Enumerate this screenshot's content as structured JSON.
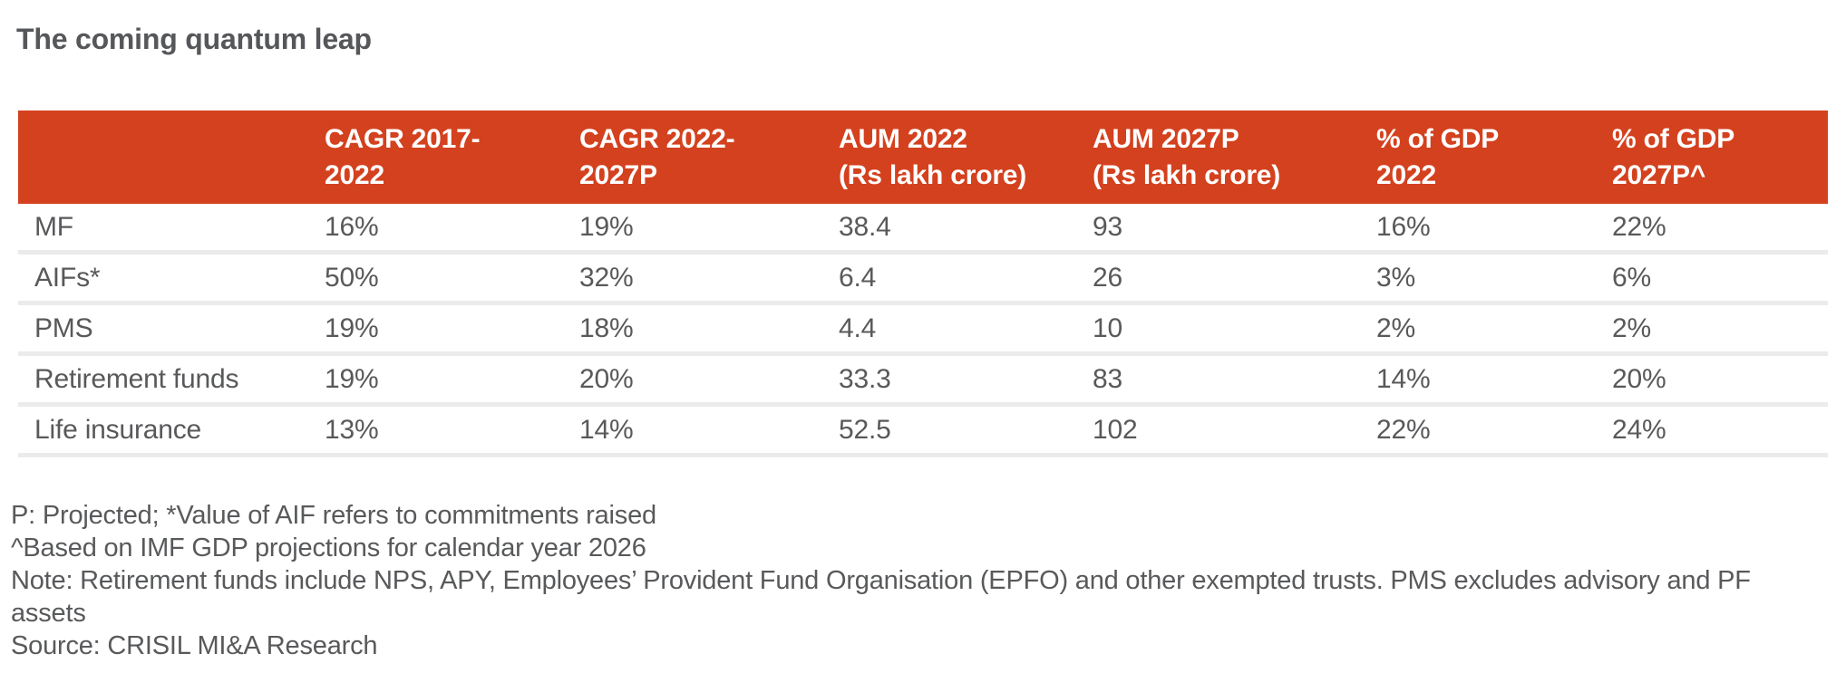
{
  "title": "The coming quantum leap",
  "colors": {
    "header_bg": "#d4411e",
    "header_text": "#ffffff",
    "body_text": "#58595b",
    "title_text": "#56575a",
    "row_divider": "#ebebeb",
    "background": "#ffffff"
  },
  "header": {
    "columns": [
      {
        "line1": "",
        "line2": ""
      },
      {
        "line1": "CAGR 2017-",
        "line2": "2022"
      },
      {
        "line1": "CAGR 2022-",
        "line2": "2027P"
      },
      {
        "line1": "AUM 2022",
        "line2": "(Rs lakh crore)"
      },
      {
        "line1": "AUM 2027P",
        "line2": "(Rs lakh crore)"
      },
      {
        "line1": "% of GDP",
        "line2": "2022"
      },
      {
        "line1": "% of GDP",
        "line2": "2027P^"
      }
    ]
  },
  "chart_data": {
    "type": "table",
    "title": "The coming quantum leap",
    "columns": [
      "",
      "CAGR 2017-2022",
      "CAGR 2022-2027P",
      "AUM 2022 (Rs lakh crore)",
      "AUM 2027P (Rs lakh crore)",
      "% of GDP 2022",
      "% of GDP 2027P^"
    ],
    "rows": [
      [
        "MF",
        "16%",
        "19%",
        "38.4",
        "93",
        "16%",
        "22%"
      ],
      [
        "AIFs*",
        "50%",
        "32%",
        "6.4",
        "26",
        "3%",
        "6%"
      ],
      [
        "PMS",
        "19%",
        "18%",
        "4.4",
        "10",
        "2%",
        "2%"
      ],
      [
        "Retirement funds",
        "19%",
        "20%",
        "33.3",
        "83",
        "14%",
        "20%"
      ],
      [
        "Life insurance",
        "13%",
        "14%",
        "52.5",
        "102",
        "22%",
        "24%"
      ]
    ]
  },
  "footnotes": {
    "line1": "P: Projected; *Value of AIF refers to commitments raised",
    "line2": "^Based on IMF GDP projections for calendar year 2026",
    "line3": "Note: Retirement funds include NPS, APY, Employees’ Provident Fund Organisation (EPFO) and other exempted trusts. PMS excludes advisory and PF assets",
    "line4": "Source: CRISIL MI&A Research"
  }
}
